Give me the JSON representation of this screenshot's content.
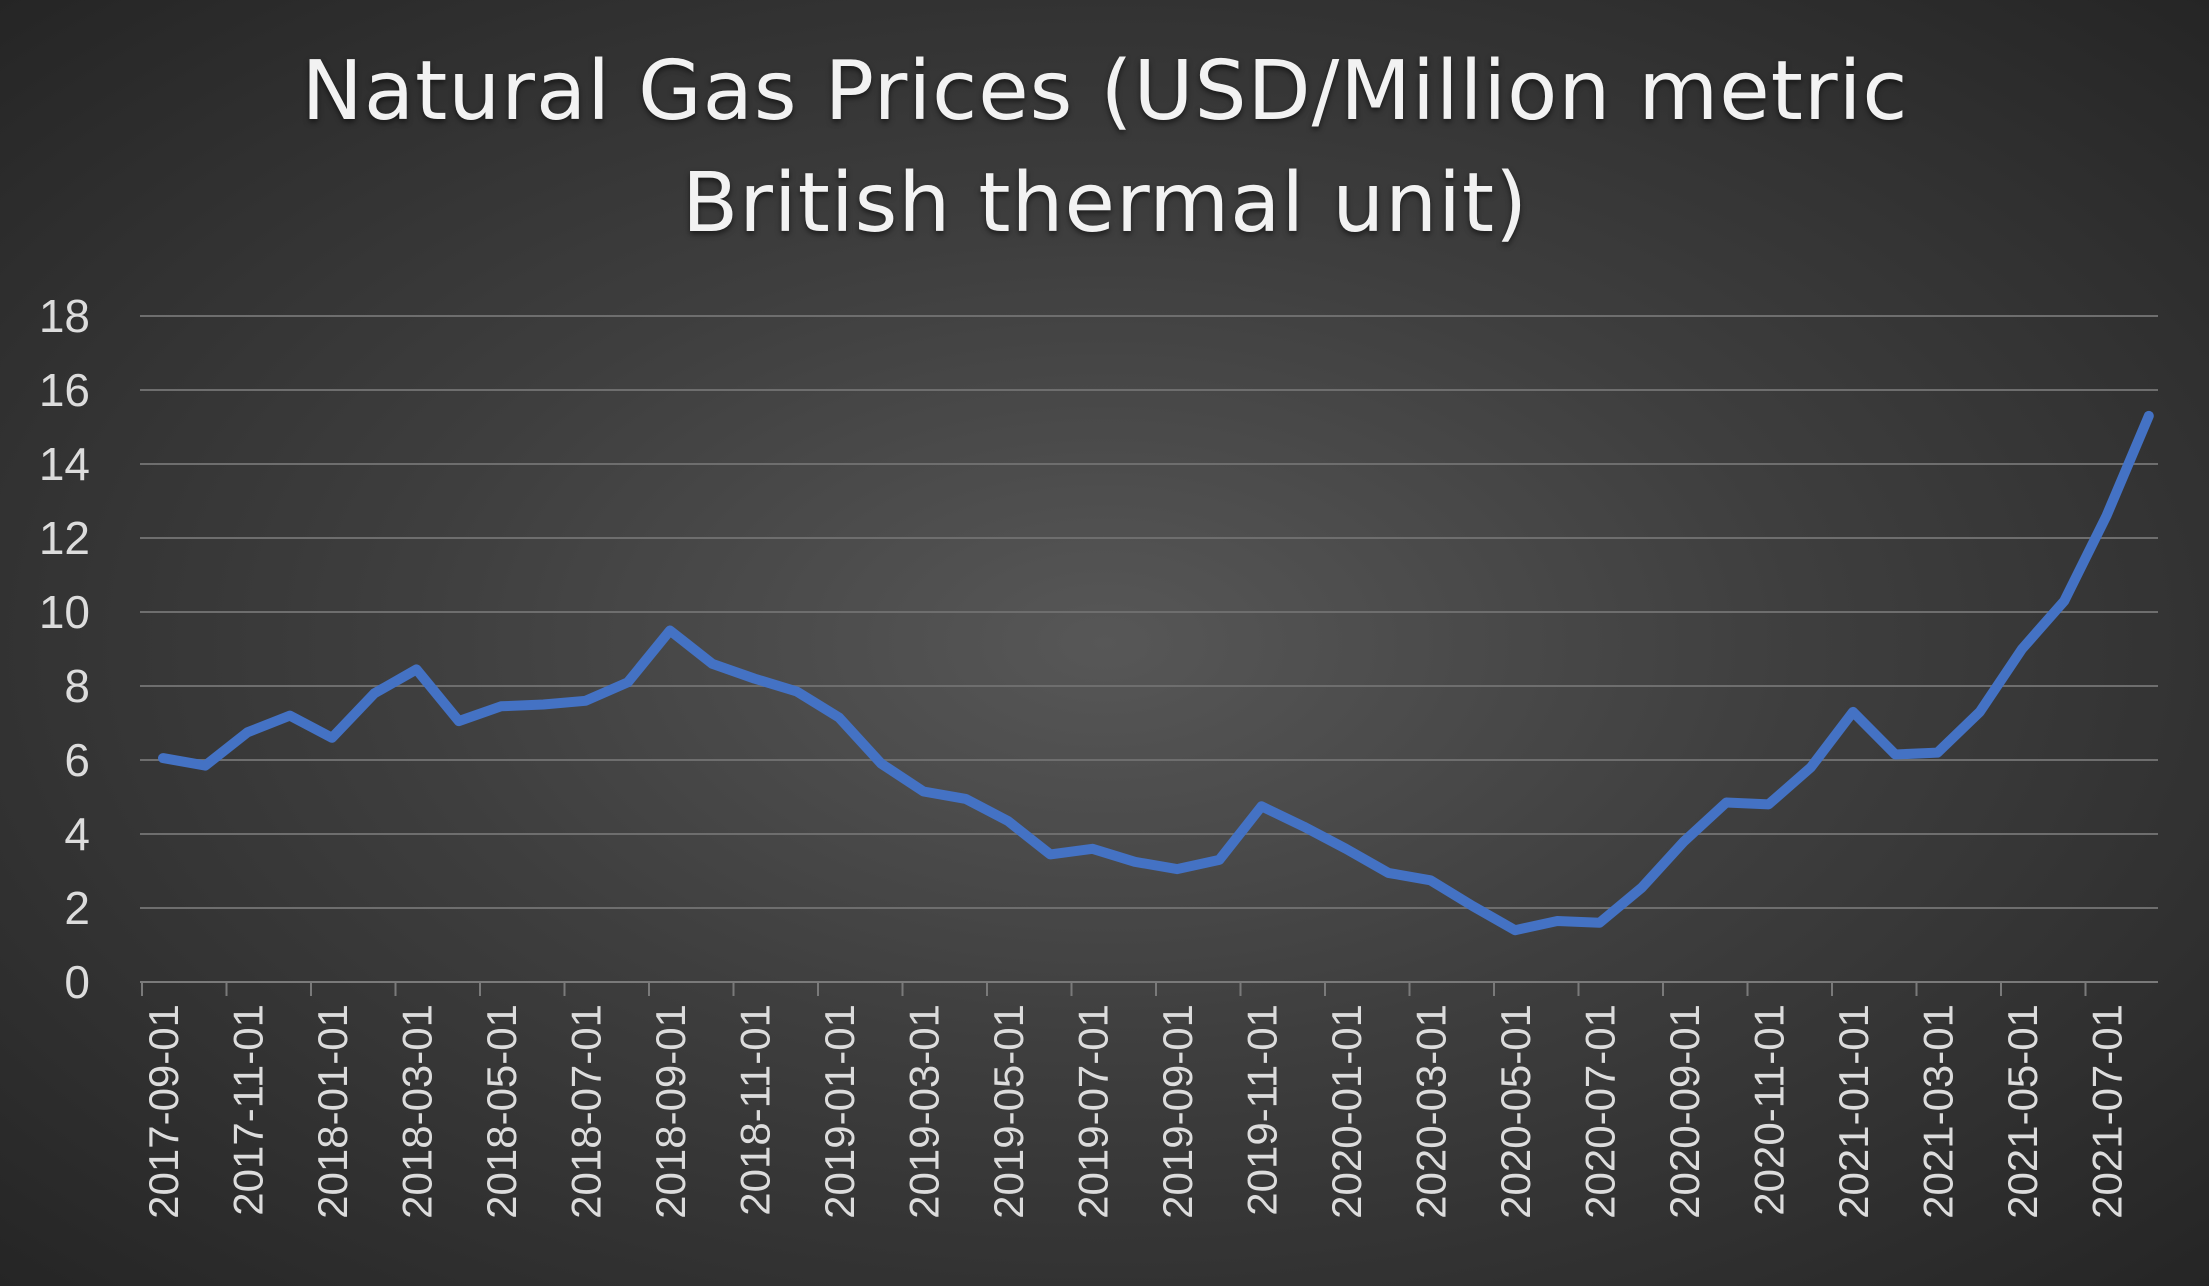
{
  "chart_data": {
    "type": "line",
    "title": "Natural Gas Prices (USD/Million metric British thermal unit)",
    "xlabel": "",
    "ylabel": "",
    "ylim": [
      0,
      18
    ],
    "y_ticks": [
      0,
      2,
      4,
      6,
      8,
      10,
      12,
      14,
      16,
      18
    ],
    "grid": true,
    "x_tick_labels": [
      "2017-09-01",
      "2017-11-01",
      "2018-01-01",
      "2018-03-01",
      "2018-05-01",
      "2018-07-01",
      "2018-09-01",
      "2018-11-01",
      "2019-01-01",
      "2019-03-01",
      "2019-05-01",
      "2019-07-01",
      "2019-09-01",
      "2019-11-01",
      "2020-01-01",
      "2020-03-01",
      "2020-05-01",
      "2020-07-01",
      "2020-09-01",
      "2020-11-01",
      "2021-01-01",
      "2021-03-01",
      "2021-05-01",
      "2021-07-01"
    ],
    "x": [
      "2017-09-01",
      "2017-10-01",
      "2017-11-01",
      "2017-12-01",
      "2018-01-01",
      "2018-02-01",
      "2018-03-01",
      "2018-04-01",
      "2018-05-01",
      "2018-06-01",
      "2018-07-01",
      "2018-08-01",
      "2018-09-01",
      "2018-10-01",
      "2018-11-01",
      "2018-12-01",
      "2019-01-01",
      "2019-02-01",
      "2019-03-01",
      "2019-04-01",
      "2019-05-01",
      "2019-06-01",
      "2019-07-01",
      "2019-08-01",
      "2019-09-01",
      "2019-10-01",
      "2019-11-01",
      "2019-12-01",
      "2020-01-01",
      "2020-02-01",
      "2020-03-01",
      "2020-04-01",
      "2020-05-01",
      "2020-06-01",
      "2020-07-01",
      "2020-08-01",
      "2020-09-01",
      "2020-10-01",
      "2020-11-01",
      "2020-12-01",
      "2021-01-01",
      "2021-02-01",
      "2021-03-01",
      "2021-04-01",
      "2021-05-01",
      "2021-06-01",
      "2021-07-01",
      "2021-08-01"
    ],
    "series": [
      {
        "name": "",
        "color": "#4472c4",
        "values": [
          6.05,
          5.85,
          6.75,
          7.2,
          6.6,
          7.8,
          8.45,
          7.05,
          7.45,
          7.5,
          7.6,
          8.1,
          9.5,
          8.6,
          8.2,
          7.85,
          7.15,
          5.9,
          5.15,
          4.95,
          4.35,
          3.45,
          3.6,
          3.25,
          3.05,
          3.3,
          4.75,
          4.2,
          3.6,
          2.95,
          2.75,
          2.05,
          1.4,
          1.65,
          1.6,
          2.55,
          3.8,
          4.85,
          4.8,
          5.8,
          7.3,
          6.15,
          6.2,
          7.3,
          9.0,
          10.3,
          12.6,
          15.3
        ]
      }
    ]
  },
  "style": {
    "line_color": "#4472c4",
    "grid_color": "#6e6e6e",
    "axis_color": "#7a7a7a",
    "text_color": "#dcdcdc"
  }
}
